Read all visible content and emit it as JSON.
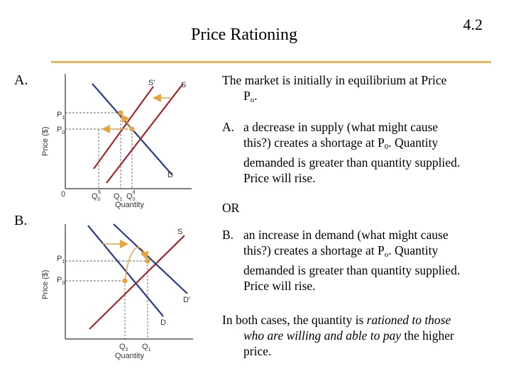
{
  "slide": {
    "title": "Price Rationing",
    "number": "4.2"
  },
  "sections": {
    "a": "A.",
    "b": "B."
  },
  "text": {
    "intro_1": "The market is initially in equilibrium at Price",
    "intro_2": "P",
    "intro_sub": "o",
    "intro_end": ".",
    "a_marker": "A.",
    "a_1": "a decrease in supply (what might cause",
    "a_2a": "this?) creates a shortage at P",
    "a_2sub": "0",
    "a_2b": ". Quantity",
    "a_3": "demanded is greater than quantity supplied.",
    "a_4": "Price will rise.",
    "or": "OR",
    "b_marker": "B.",
    "b_1": "an increase in demand (what might cause",
    "b_2a": "this?) creates a shortage at P",
    "b_2sub": "o",
    "b_2b": ". Quantity",
    "b_3": "demanded is greater than quantity supplied.",
    "b_4": "Price will rise.",
    "c_1a": "In both cases, the quantity is ",
    "c_1b": "rationed to those",
    "c_2a": "who are willing and able to pay",
    "c_2b": " the higher",
    "c_3": "price."
  },
  "graph_a": {
    "ylabel": "Price ($)",
    "xlabel": "Quantity",
    "origin": "0",
    "p1": "P",
    "p1_sub": "1",
    "p0": "P",
    "p0_sub": "0",
    "s_prime": "S'",
    "s": "S",
    "d": "D",
    "qs": "Q",
    "qs_sub": "0",
    "qs_sup": "S",
    "q1": "Q",
    "q1_sub": "1",
    "qd": "Q",
    "qd_sub": "0",
    "qd_sup": "d"
  },
  "graph_b": {
    "ylabel": "Price ($)",
    "xlabel": "Quantity",
    "p1": "P",
    "p1_sub": "1",
    "p0": "P",
    "p0_sub": "0",
    "s": "S",
    "d_prime": "D'",
    "d": "D",
    "q0": "Q",
    "q0_sub": "0",
    "q1": "Q",
    "q1_sub": "1"
  },
  "colors": {
    "supply": "#a3262a",
    "demand": "#2a3a8c",
    "arrow": "#e8a33a",
    "rule": "#e9b85b",
    "axis": "#333333"
  }
}
